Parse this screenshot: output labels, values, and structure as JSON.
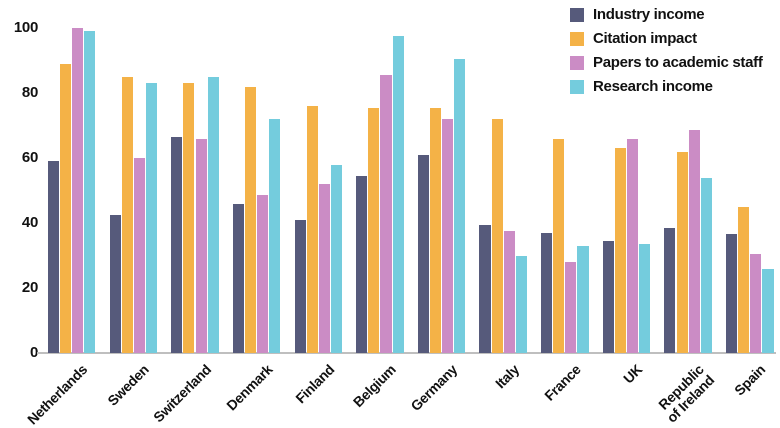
{
  "chart_data": {
    "type": "bar",
    "title": "",
    "xlabel": "",
    "ylabel": "",
    "ylim": [
      0,
      100
    ],
    "yticks": [
      0,
      20,
      40,
      60,
      80,
      100
    ],
    "grid": false,
    "legend_position": "top-right",
    "categories": [
      "Netherlands",
      "Sweden",
      "Switzerland",
      "Denmark",
      "Finland",
      "Belgium",
      "Germany",
      "Italy",
      "France",
      "UK",
      "Republic of Ireland",
      "Spain"
    ],
    "category_line_breaks": {
      "Republic of Ireland": [
        "Republic",
        "of Ireland"
      ]
    },
    "series": [
      {
        "name": "Industry income",
        "color": "#565a7b",
        "values": [
          59,
          42.5,
          66.5,
          46,
          41,
          54.5,
          61,
          39.5,
          37,
          34.5,
          38.5,
          36.5
        ]
      },
      {
        "name": "Citation impact",
        "color": "#f4b247",
        "values": [
          89,
          85,
          83,
          82,
          76,
          75.5,
          75.5,
          72,
          66,
          63,
          62,
          45
        ]
      },
      {
        "name": "Papers to academic staff",
        "color": "#cb8cc5",
        "values": [
          100,
          60,
          66,
          48.5,
          52,
          85.5,
          72,
          37.5,
          28,
          66,
          68.5,
          30.5
        ]
      },
      {
        "name": "Research income",
        "color": "#74ccdd",
        "values": [
          99,
          83,
          85,
          72,
          58,
          97.5,
          90.5,
          30,
          33,
          33.5,
          54,
          26
        ]
      }
    ],
    "colors": {
      "axis_line": "#bfbfbf",
      "text": "#111111",
      "background": "#ffffff"
    }
  }
}
